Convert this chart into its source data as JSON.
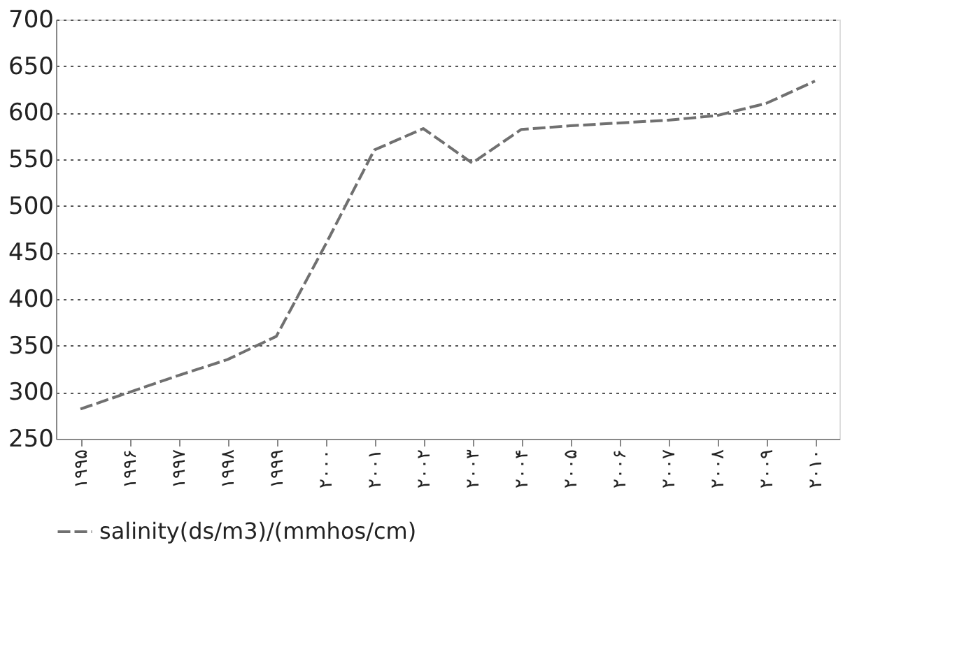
{
  "chart_data": {
    "type": "line",
    "categories": [
      "۱۹۹۵",
      "۱۹۹۶",
      "۱۹۹۷",
      "۱۹۹۸",
      "۱۹۹۹",
      "۲۰۰۰",
      "۲۰۰۱",
      "۲۰۰۲",
      "۲۰۰۳",
      "۲۰۰۴",
      "۲۰۰۵",
      "۲۰۰۶",
      "۲۰۰۷",
      "۲۰۰۸",
      "۲۰۰۹",
      "۲۰۱۰"
    ],
    "series": [
      {
        "name": "salinity(ds/m3)/(mmhos/cm)",
        "color": "#707070",
        "values": [
          282,
          300,
          318,
          335,
          360,
          458,
          560,
          583,
          546,
          582,
          586,
          589,
          592,
          597,
          610,
          634
        ]
      }
    ],
    "ylim": [
      250,
      700
    ],
    "yticks": [
      250,
      300,
      350,
      400,
      450,
      500,
      550,
      600,
      650,
      700
    ],
    "grid": "y",
    "legend": "bottom",
    "line_style": "dashed",
    "marker": "none"
  }
}
